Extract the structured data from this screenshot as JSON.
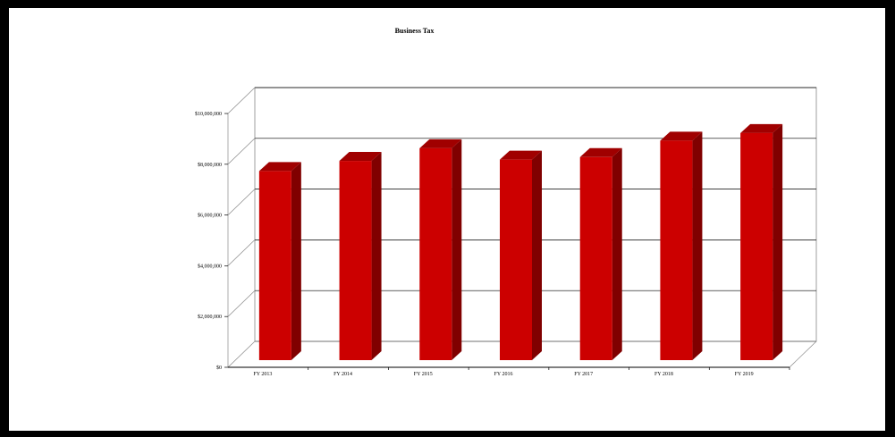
{
  "chart_data": {
    "type": "bar",
    "title": "Business Tax",
    "xlabel": "",
    "ylabel": "",
    "categories": [
      "FY 2013",
      "FY 2014",
      "FY 2015",
      "FY 2016",
      "FY 2017",
      "FY 2018",
      "FY 2019"
    ],
    "values": [
      7450000,
      7850000,
      8350000,
      7900000,
      8000000,
      8650000,
      8950000
    ],
    "ylim": [
      0,
      10000000
    ],
    "yticks": [
      0,
      2000000,
      4000000,
      6000000,
      8000000,
      10000000
    ],
    "ytick_labels": [
      "$0",
      "$2,000,000",
      "$4,000,000",
      "$6,000,000",
      "$8,000,000",
      "$10,000,000"
    ],
    "grid": true,
    "legend": "none",
    "style": "3d",
    "colors": {
      "bar_front": "#cc0000",
      "bar_side": "#800000",
      "bar_top": "#a00000",
      "gridline": "#000000",
      "frame": "#000000",
      "background": "#ffffff"
    }
  }
}
